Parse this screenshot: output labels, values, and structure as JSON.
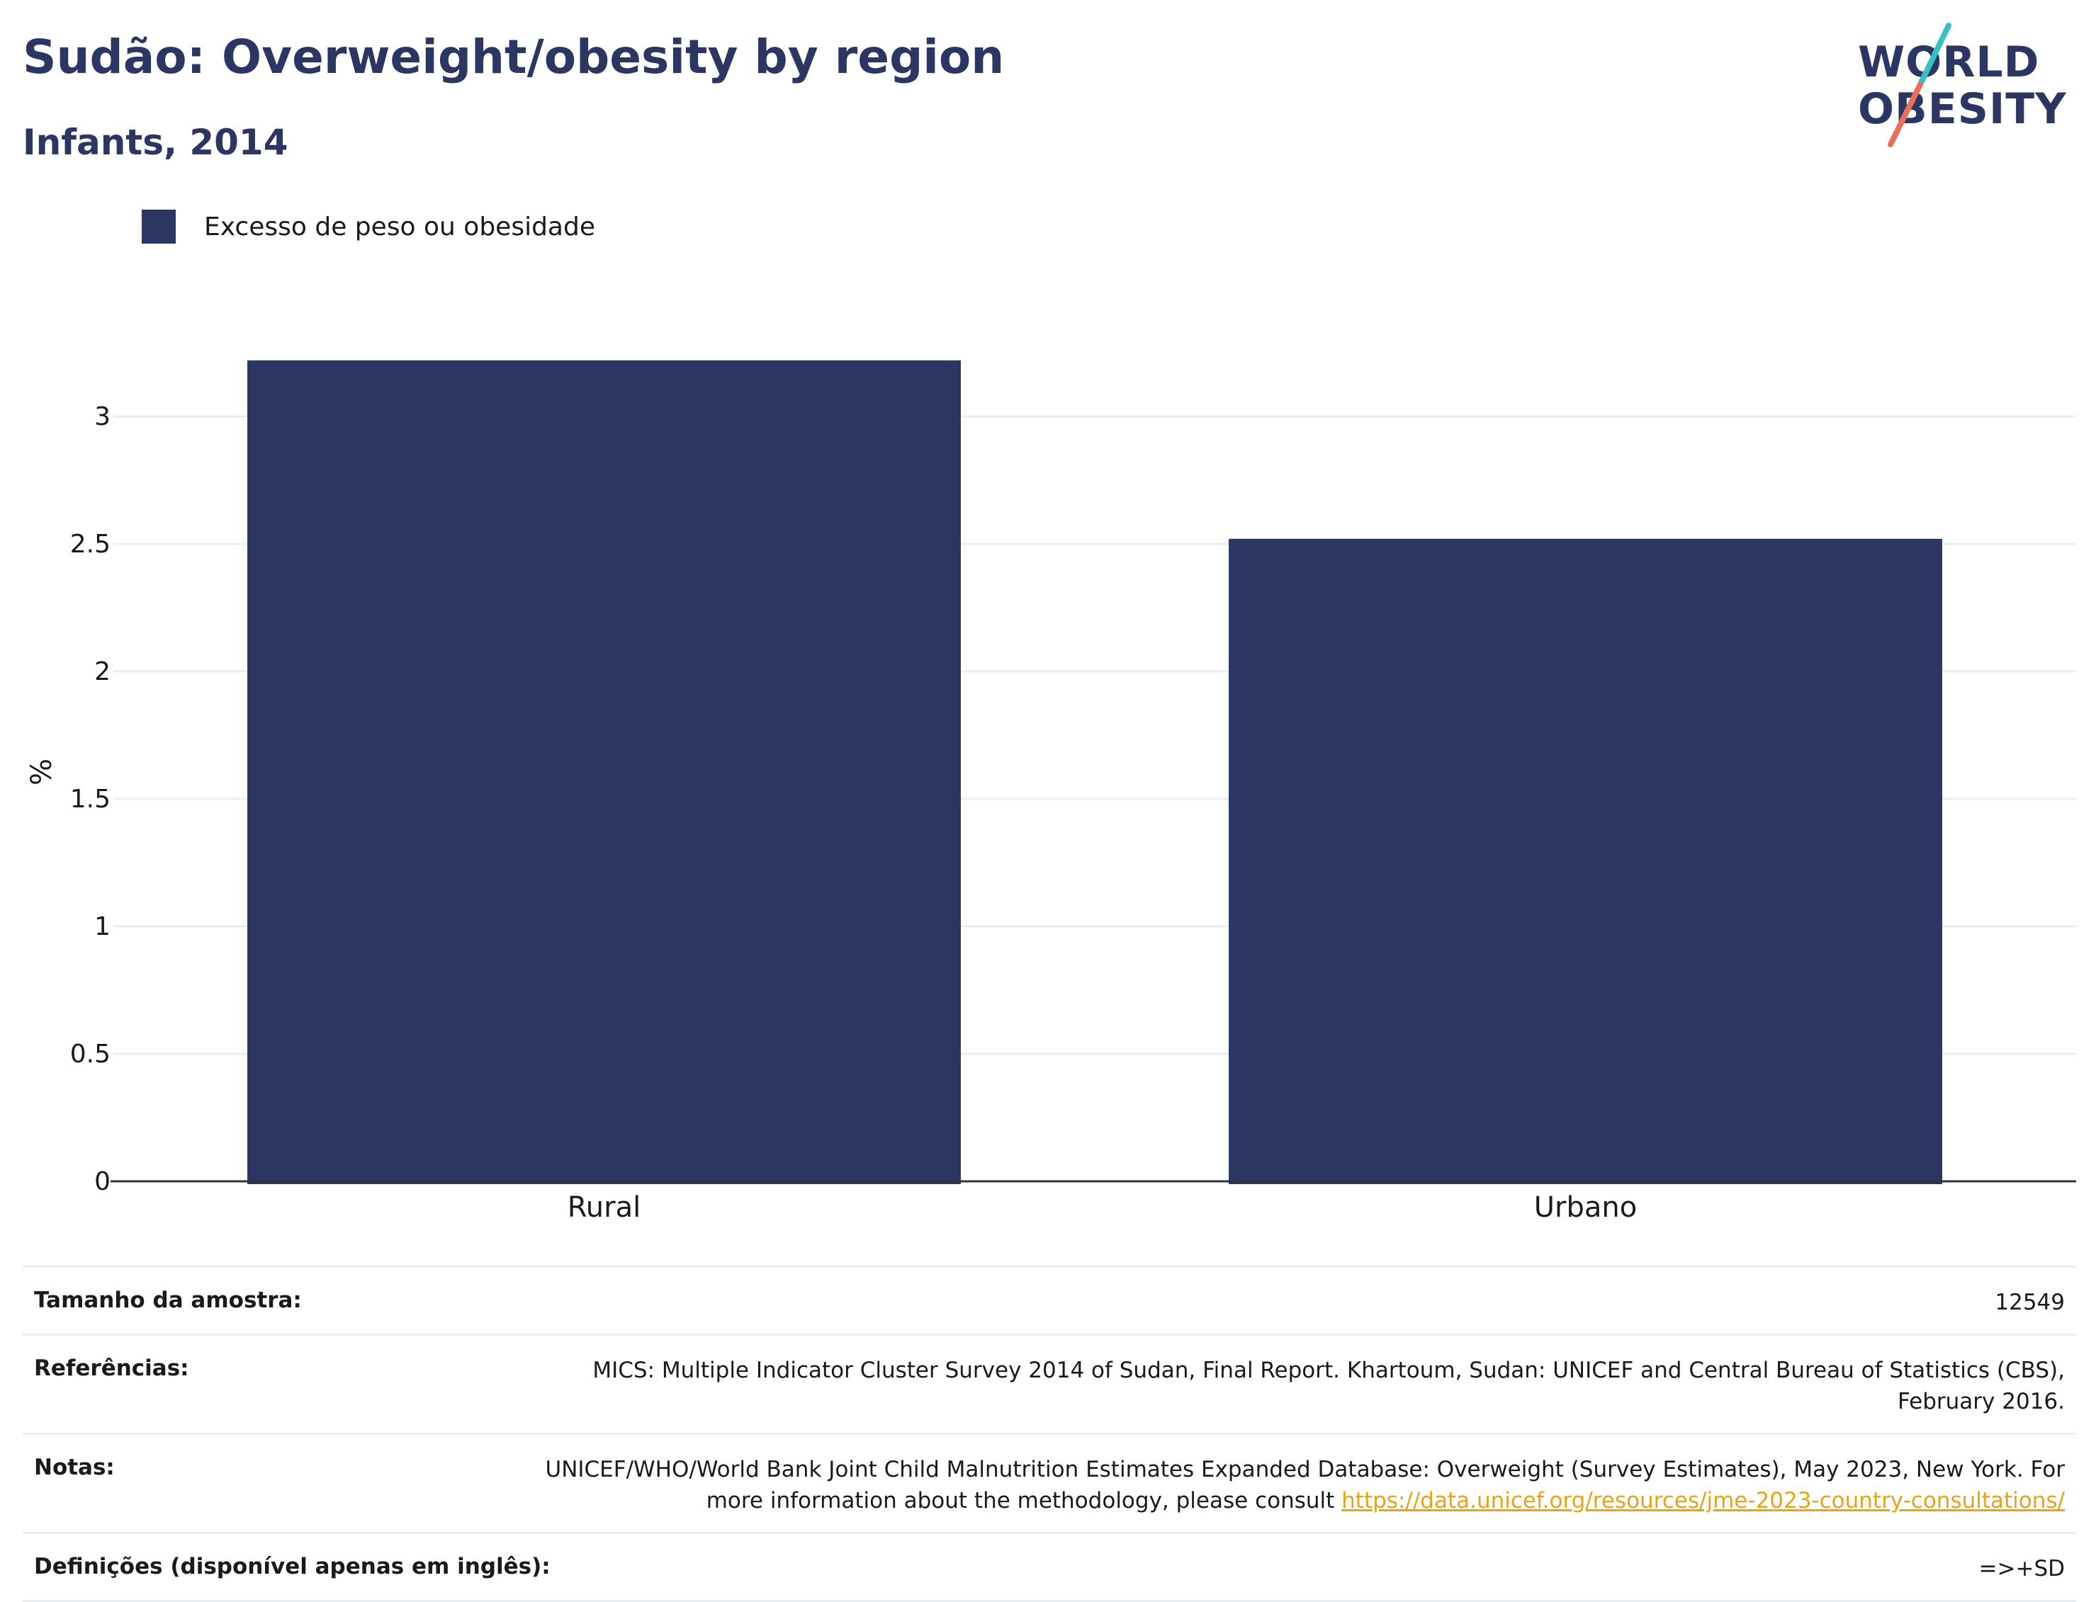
{
  "header": {
    "title": "Sudão: Overweight/obesity by region",
    "subtitle": "Infants, 2014"
  },
  "logo": {
    "line1": "WORLD",
    "line2": "OBESITY",
    "colors": {
      "text": "#2b3663",
      "slash_top": "#3bbfc6",
      "slash_bottom": "#e8705a"
    }
  },
  "legend": {
    "items": [
      {
        "label": "Excesso de peso ou obesidade",
        "color": "#2b3663"
      }
    ]
  },
  "chart_data": {
    "type": "bar",
    "categories": [
      "Rural",
      "Urbano"
    ],
    "series": [
      {
        "name": "Excesso de peso ou obesidade",
        "values": [
          3.22,
          2.52
        ],
        "color": "#2b3663"
      }
    ],
    "title": "Sudão: Overweight/obesity by region",
    "subtitle": "Infants, 2014",
    "xlabel": "",
    "ylabel": "%",
    "ylim": [
      0,
      3.3
    ],
    "yticks": [
      0,
      0.5,
      1,
      1.5,
      2,
      2.5,
      3
    ],
    "ytick_labels": [
      "0",
      "0.5",
      "1",
      "1.5",
      "2",
      "2.5",
      "3"
    ],
    "grid": true,
    "legend_position": "top-left"
  },
  "footer": {
    "rows": [
      {
        "key": "Tamanho da amostra:",
        "value": "12549"
      },
      {
        "key": "Referências:",
        "value": "MICS: Multiple Indicator Cluster Survey 2014 of Sudan, Final Report. Khartoum, Sudan: UNICEF and Central Bureau of Statistics (CBS), February 2016."
      },
      {
        "key": "Notas:",
        "value": "UNICEF/WHO/World Bank Joint Child Malnutrition Estimates Expanded Database: Overweight (Survey Estimates), May 2023, New York. For more information about the methodology, please consult ",
        "link": "https://data.unicef.org/resources/jme-2023-country-consultations/"
      },
      {
        "key": "Definições (disponível apenas em inglês):",
        "value": "=>+SD"
      }
    ]
  }
}
